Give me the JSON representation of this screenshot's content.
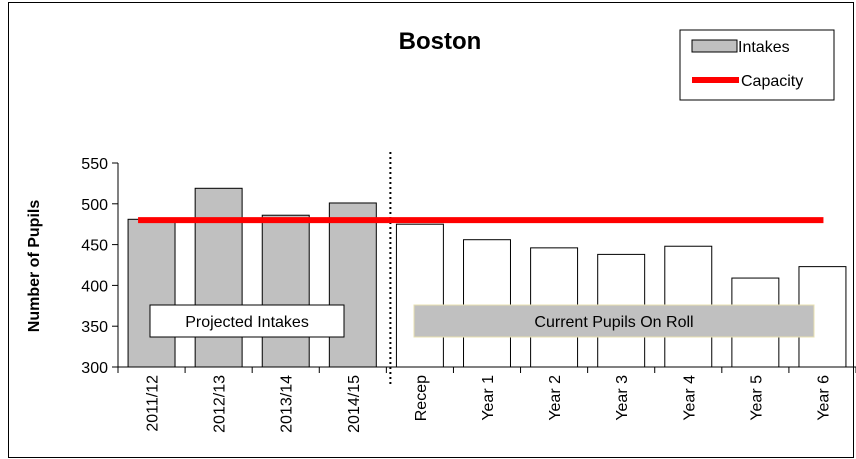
{
  "chart_data": {
    "type": "bar",
    "title": "Boston",
    "ylabel": "Number of Pupils",
    "xlabel": "",
    "ylim": [
      300,
      550
    ],
    "yticks": [
      300,
      350,
      400,
      450,
      500,
      550
    ],
    "categories": [
      "2011/12",
      "2012/13",
      "2013/14",
      "2014/15",
      "Recep",
      "Year 1",
      "Year 2",
      "Year 3",
      "Year 4",
      "Year 5",
      "Year 6"
    ],
    "series": [
      {
        "name": "Intakes",
        "values": [
          481,
          519,
          486,
          501,
          475,
          456,
          446,
          438,
          448,
          409,
          423
        ],
        "projected_color": "#c0c0c0",
        "current_color": "#ffffff"
      },
      {
        "name": "Capacity",
        "type": "line",
        "value": 480,
        "color": "#ff0000"
      }
    ],
    "projected_count": 4,
    "annotations": [
      {
        "text": "Projected Intakes",
        "group": "projected",
        "fill": "#ffffff"
      },
      {
        "text": "Current Pupils On Roll",
        "group": "current",
        "fill": "#c0c0c0"
      }
    ],
    "legend": {
      "placement": "top-right",
      "entries": [
        "Intakes",
        "Capacity"
      ]
    },
    "grid": false
  }
}
